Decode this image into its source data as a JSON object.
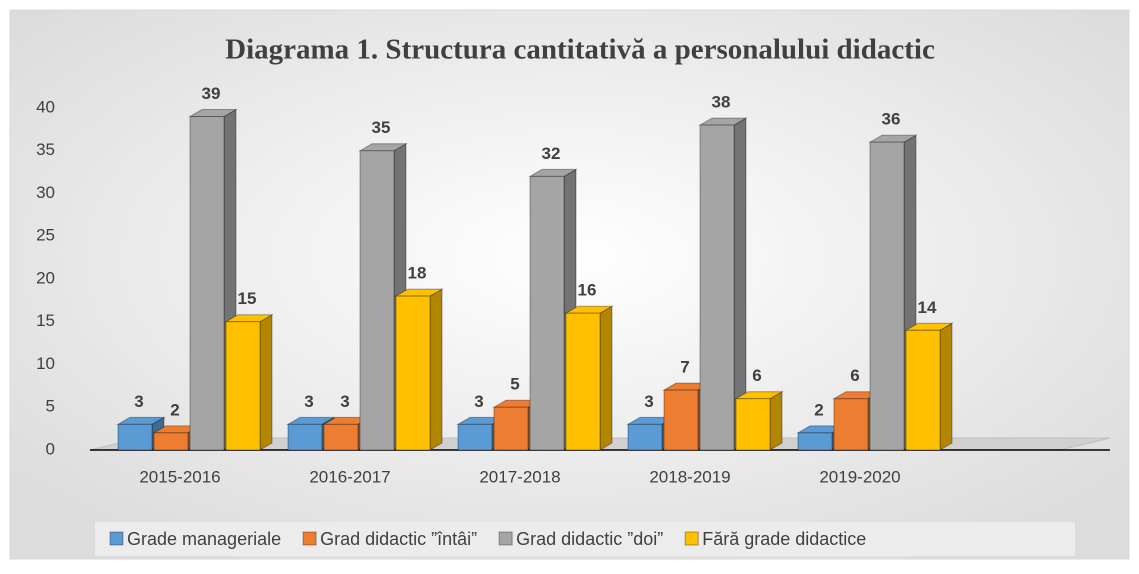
{
  "chart_data": {
    "type": "bar3d",
    "title": "Diagrama 1. Structura cantitativă a personalului didactic",
    "categories": [
      "2015-2016",
      "2016-2017",
      "2017-2018",
      "2018-2019",
      "2019-2020"
    ],
    "series": [
      {
        "name": "Grade manageriale",
        "color": "#5b9bd5",
        "values": [
          3,
          3,
          3,
          3,
          2
        ]
      },
      {
        "name": "Grad didactic ”întâi”",
        "color": "#ed7d31",
        "values": [
          2,
          3,
          5,
          7,
          6
        ]
      },
      {
        "name": "Grad didactic ”doi”",
        "color": "#a5a5a5",
        "values": [
          39,
          35,
          32,
          38,
          36
        ]
      },
      {
        "name": "Fără grade didactice",
        "color": "#ffc000",
        "values": [
          15,
          18,
          16,
          6,
          14
        ]
      }
    ],
    "ylim": [
      0,
      40
    ],
    "yticks": [
      0,
      5,
      10,
      15,
      20,
      25,
      30,
      35,
      40
    ],
    "legend": "bottom"
  }
}
